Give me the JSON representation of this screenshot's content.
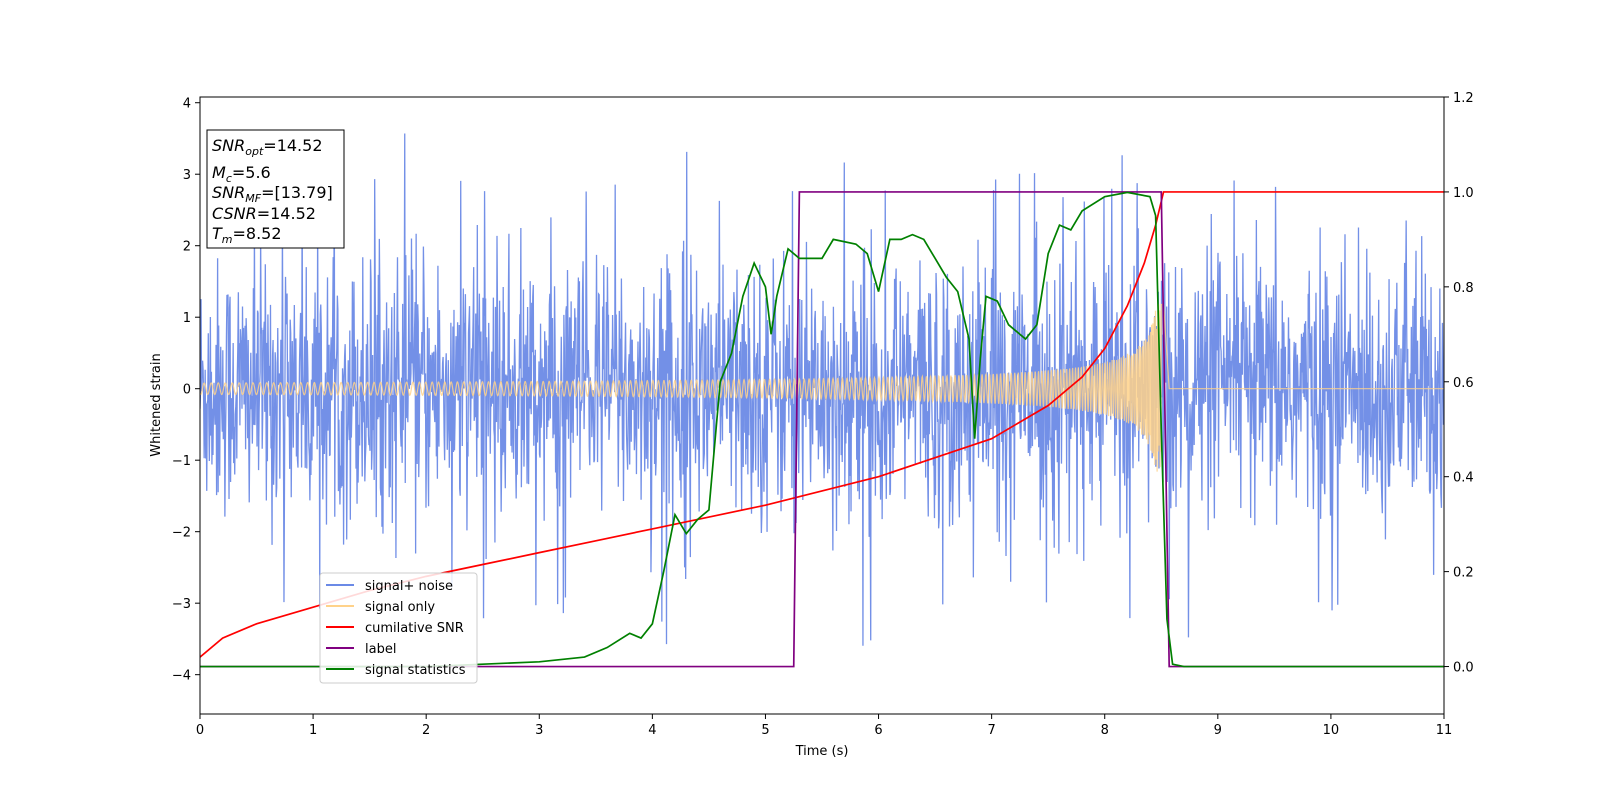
{
  "chart_data": {
    "type": "line",
    "xlabel": "Time (s)",
    "ylabel": "Whitened strain",
    "xlim": [
      0,
      11
    ],
    "ylim_left": [
      -4.55,
      4.08
    ],
    "ylim_right": [
      -0.1,
      1.2
    ],
    "x_ticks": [
      0,
      1,
      2,
      3,
      4,
      5,
      6,
      7,
      8,
      9,
      10,
      11
    ],
    "y_ticks_left": [
      4,
      3,
      2,
      1,
      0,
      -1,
      -2,
      -3,
      -4
    ],
    "y_tick_labels_left": [
      "4",
      "3",
      "2",
      "1",
      "0",
      "−1",
      "−2",
      "−3",
      "−4"
    ],
    "y_ticks_right": [
      1.2,
      1.0,
      0.8,
      0.6,
      0.4,
      0.2,
      0.0
    ],
    "y_tick_labels_right": [
      "1.2",
      "1.0",
      "0.8",
      "0.6",
      "0.4",
      "0.2",
      "0.0"
    ],
    "grid": false,
    "legend_position": "lower-left",
    "info_box": {
      "snr_opt": {
        "symbol": "SNR",
        "sub": "opt",
        "value": "=14.52"
      },
      "mc": {
        "symbol": "M",
        "sub": "c",
        "value": "=5.6"
      },
      "snr_mf": {
        "symbol": "SNR",
        "sub": "MF",
        "value": "=[13.79]"
      },
      "csnr": {
        "symbol": "CSNR",
        "sub": "",
        "value": "=14.52"
      },
      "tm": {
        "symbol": "T",
        "sub": "m",
        "value": "=8.52"
      }
    },
    "series": [
      {
        "name": "signal+ noise",
        "axis": "left",
        "color": "#6b8ae6",
        "noise_sigma": 0.9,
        "noise_extreme": 3.6,
        "x_range": [
          0,
          11
        ]
      },
      {
        "name": "signal only",
        "axis": "left",
        "color": "#ffd28a",
        "start_amplitude": 0.08,
        "peak_amplitude": 1.2,
        "merger_time": 8.52
      },
      {
        "name": "cumilative SNR",
        "axis": "right",
        "color": "#ff0000",
        "x": [
          0,
          0.2,
          0.5,
          1,
          1.5,
          2,
          2.5,
          3,
          3.5,
          4,
          4.5,
          5,
          5.5,
          6,
          6.5,
          7,
          7.5,
          7.8,
          8,
          8.2,
          8.35,
          8.45,
          8.52,
          8.6,
          9,
          10,
          11
        ],
        "y": [
          0.02,
          0.06,
          0.09,
          0.125,
          0.16,
          0.19,
          0.215,
          0.24,
          0.265,
          0.29,
          0.315,
          0.34,
          0.37,
          0.4,
          0.44,
          0.48,
          0.55,
          0.61,
          0.67,
          0.76,
          0.85,
          0.93,
          1.0,
          1.0,
          1.0,
          1.0,
          1.0
        ]
      },
      {
        "name": "label",
        "axis": "right",
        "color": "#800080",
        "x": [
          0,
          5.25,
          5.3,
          8.5,
          8.57,
          11
        ],
        "y": [
          0,
          0,
          1,
          1,
          0,
          0
        ]
      },
      {
        "name": "signal statistics",
        "axis": "right",
        "color": "#008000",
        "x": [
          0,
          1,
          2,
          2.5,
          3,
          3.4,
          3.6,
          3.8,
          3.9,
          4.0,
          4.1,
          4.2,
          4.3,
          4.4,
          4.5,
          4.6,
          4.7,
          4.8,
          4.9,
          5.0,
          5.05,
          5.1,
          5.2,
          5.3,
          5.5,
          5.6,
          5.8,
          5.9,
          6.0,
          6.1,
          6.2,
          6.3,
          6.4,
          6.5,
          6.6,
          6.7,
          6.8,
          6.85,
          6.9,
          6.95,
          7.05,
          7.15,
          7.3,
          7.4,
          7.5,
          7.6,
          7.7,
          7.8,
          8.0,
          8.2,
          8.4,
          8.45,
          8.5,
          8.55,
          8.6,
          8.7,
          9,
          10,
          11
        ],
        "y": [
          0,
          0,
          0,
          0.005,
          0.01,
          0.02,
          0.04,
          0.07,
          0.06,
          0.09,
          0.2,
          0.32,
          0.28,
          0.31,
          0.33,
          0.6,
          0.66,
          0.78,
          0.85,
          0.8,
          0.7,
          0.78,
          0.88,
          0.86,
          0.86,
          0.9,
          0.89,
          0.87,
          0.79,
          0.9,
          0.9,
          0.91,
          0.9,
          0.86,
          0.82,
          0.79,
          0.69,
          0.48,
          0.65,
          0.78,
          0.77,
          0.72,
          0.69,
          0.72,
          0.87,
          0.93,
          0.92,
          0.96,
          0.99,
          0.999,
          0.99,
          0.95,
          0.5,
          0.1,
          0.005,
          0,
          0,
          0,
          0
        ]
      }
    ]
  }
}
